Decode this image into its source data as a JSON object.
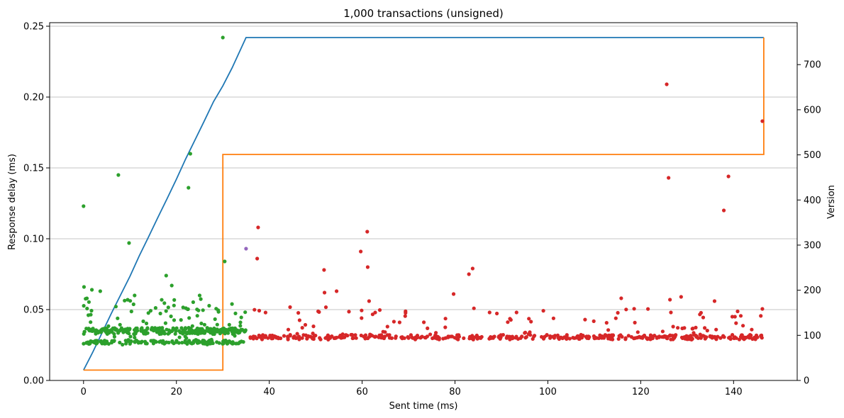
{
  "chart_data": {
    "type": "scatter",
    "title": "1,000 transactions (unsigned)",
    "xlabel": "Sent time (ms)",
    "ylabel": "Response delay (ms)",
    "y2label": "Version",
    "xlim": [
      -7.3,
      153.7
    ],
    "ylim": [
      0,
      0.2525
    ],
    "y2lim": [
      0,
      793
    ],
    "x_ticks": [
      0,
      20,
      40,
      60,
      80,
      100,
      120,
      140
    ],
    "y_ticks": [
      0.0,
      0.05,
      0.1,
      0.15,
      0.2,
      0.25
    ],
    "y_tick_labels": [
      "0.00",
      "0.05",
      "0.10",
      "0.15",
      "0.20",
      "0.25"
    ],
    "y2_ticks": [
      0,
      100,
      200,
      300,
      400,
      500,
      600,
      700
    ],
    "grid": "y-major",
    "colors": {
      "green": "#2ca02c",
      "red": "#d62728",
      "purple": "#9467bd",
      "blue": "#1f77b4",
      "orange": "#ff7f0e"
    },
    "version_lines": [
      {
        "color": "#1f77b4",
        "axis": "right",
        "points": [
          [
            0,
            23
          ],
          [
            2,
            63
          ],
          [
            4,
            106
          ],
          [
            6,
            149
          ],
          [
            8,
            190
          ],
          [
            10,
            231
          ],
          [
            12,
            276
          ],
          [
            14,
            318
          ],
          [
            16,
            361
          ],
          [
            18,
            403
          ],
          [
            20,
            446
          ],
          [
            22,
            491
          ],
          [
            24,
            533
          ],
          [
            26,
            575
          ],
          [
            28,
            618
          ],
          [
            30,
            653
          ],
          [
            32,
            693
          ],
          [
            35,
            760
          ],
          [
            146.5,
            760
          ]
        ]
      },
      {
        "color": "#ff7f0e",
        "axis": "right",
        "points": [
          [
            0,
            23
          ],
          [
            30,
            23
          ],
          [
            30,
            501
          ],
          [
            146.5,
            501
          ],
          [
            146.5,
            760
          ]
        ]
      }
    ],
    "outliers": [
      {
        "x": 0.0,
        "y": 0.123,
        "color": "#2ca02c"
      },
      {
        "x": 7.5,
        "y": 0.145,
        "color": "#2ca02c"
      },
      {
        "x": 9.8,
        "y": 0.097,
        "color": "#2ca02c"
      },
      {
        "x": 17.8,
        "y": 0.074,
        "color": "#2ca02c"
      },
      {
        "x": 22.6,
        "y": 0.136,
        "color": "#2ca02c"
      },
      {
        "x": 23.0,
        "y": 0.16,
        "color": "#2ca02c"
      },
      {
        "x": 30.0,
        "y": 0.242,
        "color": "#2ca02c"
      },
      {
        "x": 30.4,
        "y": 0.084,
        "color": "#2ca02c"
      },
      {
        "x": 0.1,
        "y": 0.066,
        "color": "#2ca02c"
      },
      {
        "x": 1.8,
        "y": 0.064,
        "color": "#2ca02c"
      },
      {
        "x": 3.6,
        "y": 0.063,
        "color": "#2ca02c"
      },
      {
        "x": 11.0,
        "y": 0.06,
        "color": "#2ca02c"
      },
      {
        "x": 19.0,
        "y": 0.067,
        "color": "#2ca02c"
      },
      {
        "x": 25.0,
        "y": 0.06,
        "color": "#2ca02c"
      },
      {
        "x": 35.0,
        "y": 0.093,
        "color": "#9467bd"
      },
      {
        "x": 37.6,
        "y": 0.108,
        "color": "#d62728"
      },
      {
        "x": 37.4,
        "y": 0.086,
        "color": "#d62728"
      },
      {
        "x": 51.8,
        "y": 0.078,
        "color": "#d62728"
      },
      {
        "x": 51.9,
        "y": 0.062,
        "color": "#d62728"
      },
      {
        "x": 54.5,
        "y": 0.063,
        "color": "#d62728"
      },
      {
        "x": 59.7,
        "y": 0.091,
        "color": "#d62728"
      },
      {
        "x": 61.1,
        "y": 0.105,
        "color": "#d62728"
      },
      {
        "x": 61.2,
        "y": 0.08,
        "color": "#d62728"
      },
      {
        "x": 61.5,
        "y": 0.056,
        "color": "#d62728"
      },
      {
        "x": 79.7,
        "y": 0.061,
        "color": "#d62728"
      },
      {
        "x": 83.0,
        "y": 0.075,
        "color": "#d62728"
      },
      {
        "x": 83.8,
        "y": 0.079,
        "color": "#d62728"
      },
      {
        "x": 115.8,
        "y": 0.058,
        "color": "#d62728"
      },
      {
        "x": 125.6,
        "y": 0.209,
        "color": "#d62728"
      },
      {
        "x": 126.0,
        "y": 0.143,
        "color": "#d62728"
      },
      {
        "x": 126.3,
        "y": 0.057,
        "color": "#d62728"
      },
      {
        "x": 126.5,
        "y": 0.048,
        "color": "#d62728"
      },
      {
        "x": 128.7,
        "y": 0.059,
        "color": "#d62728"
      },
      {
        "x": 135.9,
        "y": 0.056,
        "color": "#d62728"
      },
      {
        "x": 137.9,
        "y": 0.12,
        "color": "#d62728"
      },
      {
        "x": 138.9,
        "y": 0.144,
        "color": "#d62728"
      },
      {
        "x": 140.3,
        "y": 0.045,
        "color": "#d62728"
      },
      {
        "x": 146.2,
        "y": 0.183,
        "color": "#d62728"
      }
    ],
    "bulk_series": [
      {
        "color": "#2ca02c",
        "x_range": [
          0,
          35
        ],
        "y_levels": [
          0.027,
          0.034,
          0.036
        ],
        "spread": [
          0.025,
          0.058
        ],
        "count": 470
      },
      {
        "color": "#d62728",
        "x_range": [
          35,
          146.5
        ],
        "y_levels": [
          0.03,
          0.031
        ],
        "spread": [
          0.029,
          0.052
        ],
        "count": 530
      }
    ]
  }
}
